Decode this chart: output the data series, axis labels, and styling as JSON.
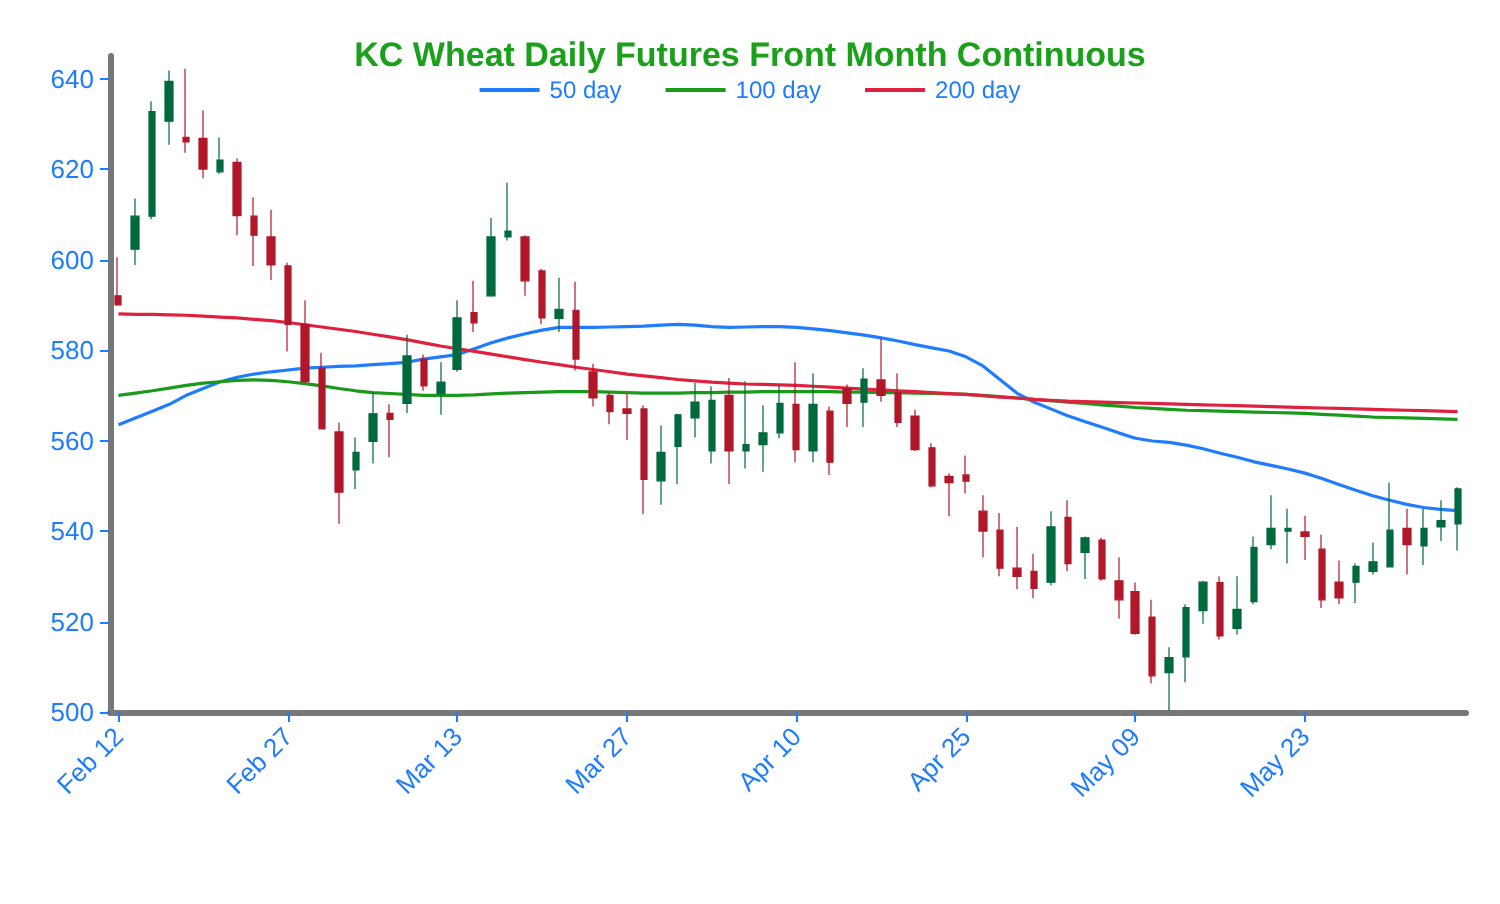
{
  "chart_data": {
    "type": "candlestick",
    "title": "KC Wheat Daily Futures Front Month Continuous",
    "categories": [
      "Feb 12",
      null,
      null,
      null,
      null,
      null,
      null,
      null,
      null,
      null,
      "Feb 27",
      null,
      null,
      null,
      null,
      null,
      null,
      null,
      null,
      null,
      "Mar 13",
      null,
      null,
      null,
      null,
      null,
      null,
      null,
      null,
      null,
      "Mar 27",
      null,
      null,
      null,
      null,
      null,
      null,
      null,
      null,
      null,
      "Apr 10",
      null,
      null,
      null,
      null,
      null,
      null,
      null,
      null,
      null,
      "Apr 25",
      null,
      null,
      null,
      null,
      null,
      null,
      null,
      null,
      null,
      "May 09",
      null,
      null,
      null,
      null,
      null,
      null,
      null,
      null,
      null,
      "May 23",
      null,
      null,
      null,
      null,
      null,
      null,
      null,
      null,
      null
    ],
    "ohlc": [
      [
        592,
        600.5,
        589.8,
        590
      ],
      [
        602.3,
        613.5,
        598.8,
        609.6
      ],
      [
        609.6,
        635,
        608.9,
        632.7
      ],
      [
        630.6,
        641.8,
        625.4,
        639.4
      ],
      [
        627,
        642.2,
        623.6,
        626
      ],
      [
        626.8,
        633,
        618,
        620
      ],
      [
        619.4,
        627,
        619,
        622
      ],
      [
        621.5,
        622.4,
        605.4,
        609.7
      ],
      [
        609.6,
        613.8,
        598.6,
        605.4
      ],
      [
        605,
        611,
        595.5,
        598.8
      ],
      [
        598.6,
        599.3,
        579.7,
        585.7
      ],
      [
        585.7,
        591,
        572.7,
        573
      ],
      [
        576,
        579.4,
        562.6,
        562.6
      ],
      [
        561.9,
        564,
        541.6,
        548.6
      ],
      [
        553.5,
        560.7,
        549.3,
        557.4
      ],
      [
        559.8,
        570.7,
        554.9,
        565.9
      ],
      [
        566,
        568,
        556.3,
        564.7
      ],
      [
        568.2,
        583.4,
        566.1,
        578.7
      ],
      [
        578,
        579,
        571,
        572.1
      ],
      [
        570.3,
        577.3,
        565.7,
        572.9
      ],
      [
        575.7,
        591,
        575.2,
        587.1
      ],
      [
        588.3,
        595.3,
        584,
        586
      ],
      [
        592,
        609.2,
        591.8,
        605
      ],
      [
        605,
        617,
        604.2,
        606.3
      ],
      [
        605,
        605.4,
        592,
        595.3
      ],
      [
        597.5,
        598,
        585.7,
        587.1
      ],
      [
        587,
        596,
        584,
        589
      ],
      [
        588.8,
        595.1,
        575.5,
        578
      ],
      [
        575.2,
        577,
        567.5,
        569.4
      ],
      [
        570,
        570.6,
        563.6,
        566.4
      ],
      [
        567,
        570.3,
        560.1,
        566
      ],
      [
        567,
        567.8,
        543.7,
        551.4
      ],
      [
        551.1,
        563.3,
        545.8,
        557.4
      ],
      [
        558.7,
        565.9,
        550.4,
        565.7
      ],
      [
        565,
        572.7,
        560.7,
        568.5
      ],
      [
        557.7,
        572,
        554.9,
        568.9
      ],
      [
        570,
        573.8,
        550.4,
        557.7
      ],
      [
        557.7,
        573.1,
        553.8,
        559.1
      ],
      [
        559.1,
        567.8,
        553.1,
        561.7
      ],
      [
        561.7,
        572.4,
        560.5,
        568.2
      ],
      [
        568,
        577.3,
        555.2,
        558
      ],
      [
        557.7,
        574.9,
        555.2,
        568
      ],
      [
        566.5,
        567.5,
        552.4,
        555.2
      ],
      [
        571.5,
        572.4,
        563,
        568.2
      ],
      [
        568.5,
        576,
        563,
        573.6
      ],
      [
        573.4,
        582.6,
        568.6,
        570
      ],
      [
        570.6,
        574.9,
        563,
        564
      ],
      [
        565.4,
        566.8,
        557.7,
        558
      ],
      [
        558.4,
        559.4,
        549.6,
        550
      ],
      [
        552.1,
        552.8,
        543.3,
        550.7
      ],
      [
        552.4,
        556.7,
        548.3,
        551
      ],
      [
        544.4,
        547.9,
        534.2,
        540
      ],
      [
        540.2,
        544,
        530,
        531.8
      ],
      [
        531.8,
        540.9,
        527.2,
        530
      ],
      [
        531.1,
        534.9,
        525.2,
        527.3
      ],
      [
        528.7,
        544.4,
        528,
        540.9
      ],
      [
        543,
        546.8,
        531.1,
        532.8
      ],
      [
        535.3,
        538.8,
        529.4,
        538.5
      ],
      [
        538,
        538.5,
        529,
        529.4
      ],
      [
        529,
        534.2,
        520.6,
        524.8
      ],
      [
        526.6,
        528.6,
        517.1,
        517.4
      ],
      [
        521,
        524.8,
        506.3,
        508
      ],
      [
        508.7,
        514.3,
        500.3,
        512
      ],
      [
        512.2,
        523.8,
        506.6,
        523.1
      ],
      [
        522.4,
        529,
        519.5,
        528.7
      ],
      [
        528.6,
        530,
        516,
        516.8
      ],
      [
        518.5,
        530,
        517.1,
        522.7
      ],
      [
        524.4,
        538.8,
        523.8,
        536.4
      ],
      [
        537,
        547.9,
        536,
        540.6
      ],
      [
        540,
        544.9,
        532.8,
        540.6
      ],
      [
        539.8,
        543.4,
        533.6,
        538.8
      ],
      [
        536,
        539.2,
        523,
        524.8
      ],
      [
        528.7,
        533.5,
        523.8,
        525.2
      ],
      [
        528.7,
        532.8,
        524.1,
        532.2
      ],
      [
        531.1,
        537.4,
        530.4,
        533.2
      ],
      [
        532.1,
        550.7,
        532.1,
        540.2
      ],
      [
        540.6,
        544.9,
        530.4,
        537
      ],
      [
        536.7,
        544.9,
        532.5,
        540.6
      ],
      [
        540.9,
        546.8,
        537.8,
        542.3
      ],
      [
        541.6,
        549.7,
        535.7,
        549.3
      ]
    ],
    "colors": [
      "#b0182a",
      "#00693e",
      "#00693e",
      "#00693e",
      "#b0182a",
      "#b0182a",
      "#00693e",
      "#b0182a",
      "#b0182a",
      "#b0182a",
      "#b0182a",
      "#b0182a",
      "#b0182a",
      "#b0182a",
      "#00693e",
      "#00693e",
      "#b0182a",
      "#00693e",
      "#b0182a",
      "#00693e",
      "#00693e",
      "#b0182a",
      "#00693e",
      "#00693e",
      "#b0182a",
      "#b0182a",
      "#00693e",
      "#b0182a",
      "#b0182a",
      "#b0182a",
      "#b0182a",
      "#b0182a",
      "#00693e",
      "#00693e",
      "#00693e",
      "#00693e",
      "#b0182a",
      "#00693e",
      "#00693e",
      "#00693e",
      "#b0182a",
      "#00693e",
      "#b0182a",
      "#b0182a",
      "#00693e",
      "#b0182a",
      "#b0182a",
      "#b0182a",
      "#b0182a",
      "#b0182a",
      "#b0182a",
      "#b0182a",
      "#b0182a",
      "#b0182a",
      "#b0182a",
      "#00693e",
      "#b0182a",
      "#00693e",
      "#b0182a",
      "#b0182a",
      "#b0182a",
      "#b0182a",
      "#00693e",
      "#00693e",
      "#00693e",
      "#b0182a",
      "#00693e",
      "#00693e",
      "#00693e",
      "#00693e",
      "#b0182a",
      "#b0182a",
      "#b0182a",
      "#00693e",
      "#00693e",
      "#00693e",
      "#b0182a",
      "#00693e",
      "#00693e",
      "#00693e"
    ],
    "series": [
      {
        "name": "50 day",
        "type": "line",
        "color": "#1f7cff",
        "values": [
          563.5,
          565,
          566.5,
          568,
          570,
          571.5,
          573,
          574,
          574.7,
          575.2,
          575.6,
          576,
          576.2,
          576.4,
          576.5,
          576.8,
          577,
          577.3,
          578,
          578.5,
          579,
          580.3,
          581.6,
          582.7,
          583.6,
          584.4,
          585,
          585,
          585,
          585.1,
          585.2,
          585.3,
          585.5,
          585.7,
          585.5,
          585.2,
          585,
          585.1,
          585.2,
          585.2,
          585,
          584.7,
          584.3,
          583.8,
          583.3,
          582.7,
          582,
          581.2,
          580.5,
          579.8,
          578.5,
          576.5,
          573.5,
          570.5,
          568.5,
          567,
          565.5,
          564.2,
          563,
          561.7,
          560.5,
          559.9,
          559.6,
          559,
          558.2,
          557.2,
          556.3,
          555.3,
          554.5,
          553.7,
          552.8,
          551.6,
          550.3,
          549,
          547.8,
          546.8,
          545.9,
          545.2,
          544.8,
          544.5
        ]
      },
      {
        "name": "100 day",
        "type": "line",
        "color": "#1a9a1a",
        "values": [
          570,
          570.5,
          571,
          571.6,
          572.2,
          572.7,
          573,
          573.3,
          573.4,
          573.3,
          573,
          572.6,
          572.1,
          571.5,
          571,
          570.6,
          570.4,
          570.2,
          570,
          570,
          570,
          570.1,
          570.3,
          570.5,
          570.6,
          570.7,
          570.8,
          570.8,
          570.8,
          570.7,
          570.6,
          570.5,
          570.5,
          570.5,
          570.6,
          570.6,
          570.7,
          570.7,
          570.8,
          570.8,
          570.8,
          570.8,
          570.8,
          570.7,
          570.7,
          570.6,
          570.6,
          570.5,
          570.4,
          570.3,
          570.2,
          570,
          569.7,
          569.4,
          569.1,
          568.8,
          568.5,
          568.2,
          567.9,
          567.6,
          567.3,
          567.1,
          566.9,
          566.7,
          566.6,
          566.5,
          566.4,
          566.3,
          566.2,
          566.1,
          566,
          565.8,
          565.6,
          565.4,
          565.2,
          565.1,
          565,
          564.9,
          564.8,
          564.7
        ]
      },
      {
        "name": "200 day",
        "type": "line",
        "color": "#e0203f",
        "values": [
          588,
          587.9,
          587.9,
          587.8,
          587.7,
          587.5,
          587.3,
          587.1,
          586.8,
          586.5,
          586.1,
          585.6,
          585.1,
          584.6,
          584.1,
          583.5,
          582.9,
          582.3,
          581.6,
          580.9,
          580.3,
          579.7,
          579.1,
          578.5,
          577.9,
          577.3,
          576.8,
          576.2,
          575.7,
          575.2,
          574.7,
          574.3,
          573.9,
          573.5,
          573.2,
          572.9,
          572.7,
          572.5,
          572.4,
          572.3,
          572.2,
          572,
          571.8,
          571.6,
          571.4,
          571.2,
          571,
          570.8,
          570.6,
          570.4,
          570.2,
          569.9,
          569.6,
          569.4,
          569.1,
          568.9,
          568.7,
          568.6,
          568.5,
          568.4,
          568.3,
          568.2,
          568.1,
          568,
          567.9,
          567.8,
          567.7,
          567.6,
          567.5,
          567.4,
          567.3,
          567.2,
          567.1,
          567,
          566.9,
          566.8,
          566.7,
          566.6,
          566.5,
          566.4
        ]
      }
    ],
    "ylim": [
      500,
      645
    ],
    "yticks": [
      500,
      520,
      540,
      560,
      580,
      600,
      620,
      640
    ],
    "grid": false,
    "legend": "top",
    "marker": "none",
    "line_style": "solid"
  }
}
